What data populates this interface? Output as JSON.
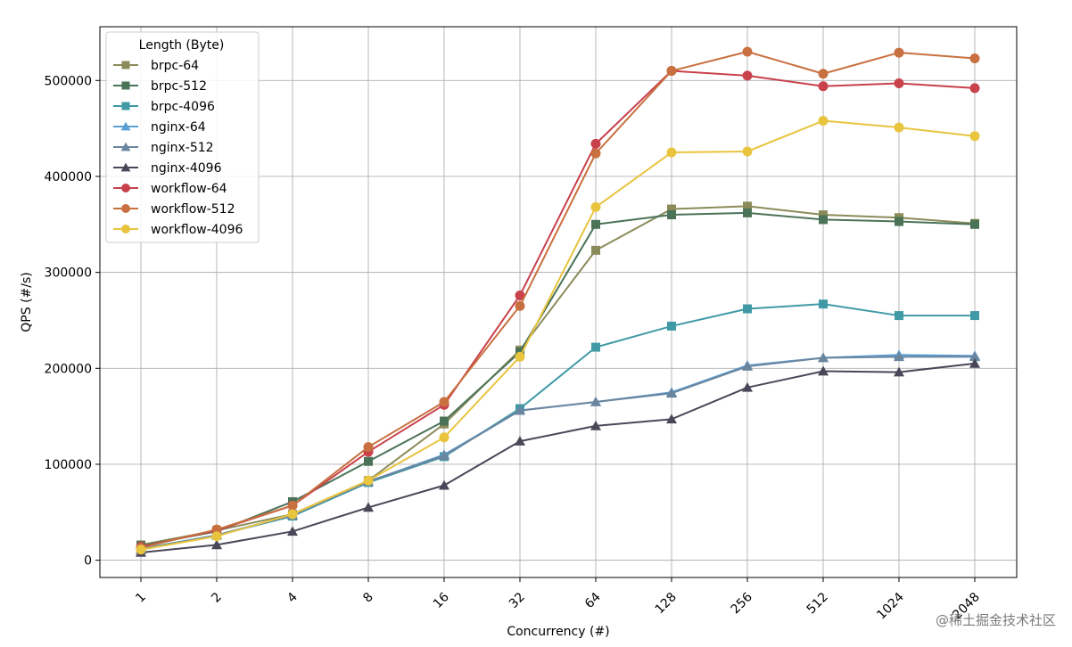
{
  "chart_data": {
    "type": "line",
    "title": "",
    "xlabel": "Concurrency (#)",
    "ylabel": "QPS (#/s)",
    "categories": [
      "1",
      "2",
      "4",
      "8",
      "16",
      "32",
      "64",
      "128",
      "256",
      "512",
      "1024",
      "2048"
    ],
    "ylim": [
      -18000,
      556000
    ],
    "yticks": [
      0,
      100000,
      200000,
      300000,
      400000,
      500000
    ],
    "grid": true,
    "legend_title": "Length (Byte)",
    "legend_position": "top-left",
    "series": [
      {
        "name": "brpc-64",
        "marker": "square",
        "color": "#8b8b5a",
        "values": [
          16000,
          31000,
          48000,
          83000,
          142000,
          219000,
          323000,
          366000,
          369000,
          360000,
          357000,
          351000
        ]
      },
      {
        "name": "brpc-512",
        "marker": "square",
        "color": "#4b7358",
        "values": [
          15000,
          30000,
          61000,
          103000,
          145000,
          217000,
          350000,
          360000,
          362000,
          355000,
          353000,
          350000
        ]
      },
      {
        "name": "brpc-4096",
        "marker": "square",
        "color": "#3f9aa6",
        "values": [
          12000,
          26000,
          46000,
          81000,
          108000,
          158000,
          222000,
          244000,
          262000,
          267000,
          255000,
          255000
        ]
      },
      {
        "name": "nginx-64",
        "marker": "triangle",
        "color": "#5a9fd4",
        "values": [
          11000,
          26000,
          47000,
          82000,
          110000,
          156000,
          165000,
          175000,
          203000,
          211000,
          214000,
          213000
        ]
      },
      {
        "name": "nginx-512",
        "marker": "triangle",
        "color": "#6b859e",
        "values": [
          11000,
          26000,
          47000,
          82000,
          109000,
          156000,
          165000,
          174000,
          202000,
          211000,
          212000,
          212000
        ]
      },
      {
        "name": "nginx-4096",
        "marker": "triangle",
        "color": "#4a4858",
        "values": [
          8000,
          16000,
          30000,
          55000,
          78000,
          124000,
          140000,
          147000,
          180000,
          197000,
          196000,
          205000
        ]
      },
      {
        "name": "workflow-64",
        "marker": "circle",
        "color": "#c8414b",
        "values": [
          14000,
          31000,
          57000,
          113000,
          162000,
          276000,
          434000,
          510000,
          505000,
          494000,
          497000,
          492000
        ]
      },
      {
        "name": "workflow-512",
        "marker": "circle",
        "color": "#c8703f",
        "values": [
          13000,
          32000,
          57000,
          118000,
          165000,
          265000,
          424000,
          510000,
          530000,
          507000,
          529000,
          523000
        ]
      },
      {
        "name": "workflow-4096",
        "marker": "circle",
        "color": "#e8c43f",
        "values": [
          11000,
          25000,
          48000,
          83000,
          128000,
          212000,
          368000,
          425000,
          426000,
          458000,
          451000,
          442000
        ]
      }
    ]
  },
  "watermark": "@稀土掘金技术社区"
}
